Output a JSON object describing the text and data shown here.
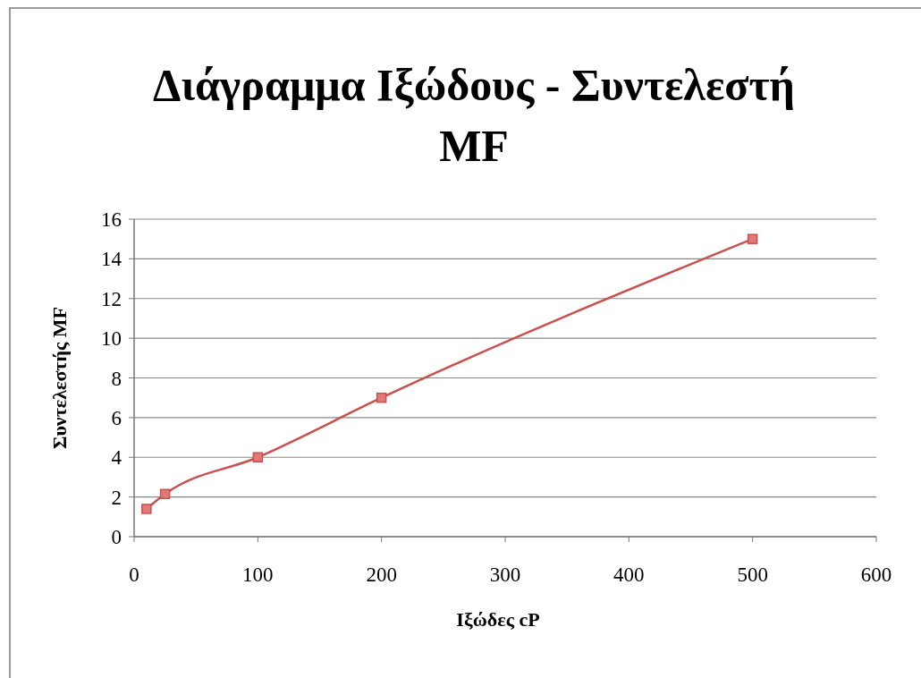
{
  "chart_data": {
    "type": "line",
    "title": "Διάγραμμα Ιξώδους - Συντελεστή MF",
    "xlabel": "Ιξώδες cP",
    "ylabel": "Συντελεστής MF",
    "x": [
      10,
      25,
      100,
      200,
      500
    ],
    "series": [
      {
        "color": "#c9504d",
        "values": [
          1.4,
          2.15,
          4,
          7,
          15
        ]
      }
    ],
    "xlim": [
      0,
      600
    ],
    "xticks": [
      0,
      100,
      200,
      300,
      400,
      500,
      600
    ],
    "ylim": [
      0,
      16
    ],
    "yticks": [
      0,
      2,
      4,
      6,
      8,
      10,
      12,
      14,
      16
    ],
    "grid": "y",
    "marker": "square",
    "line_style": "solid"
  }
}
